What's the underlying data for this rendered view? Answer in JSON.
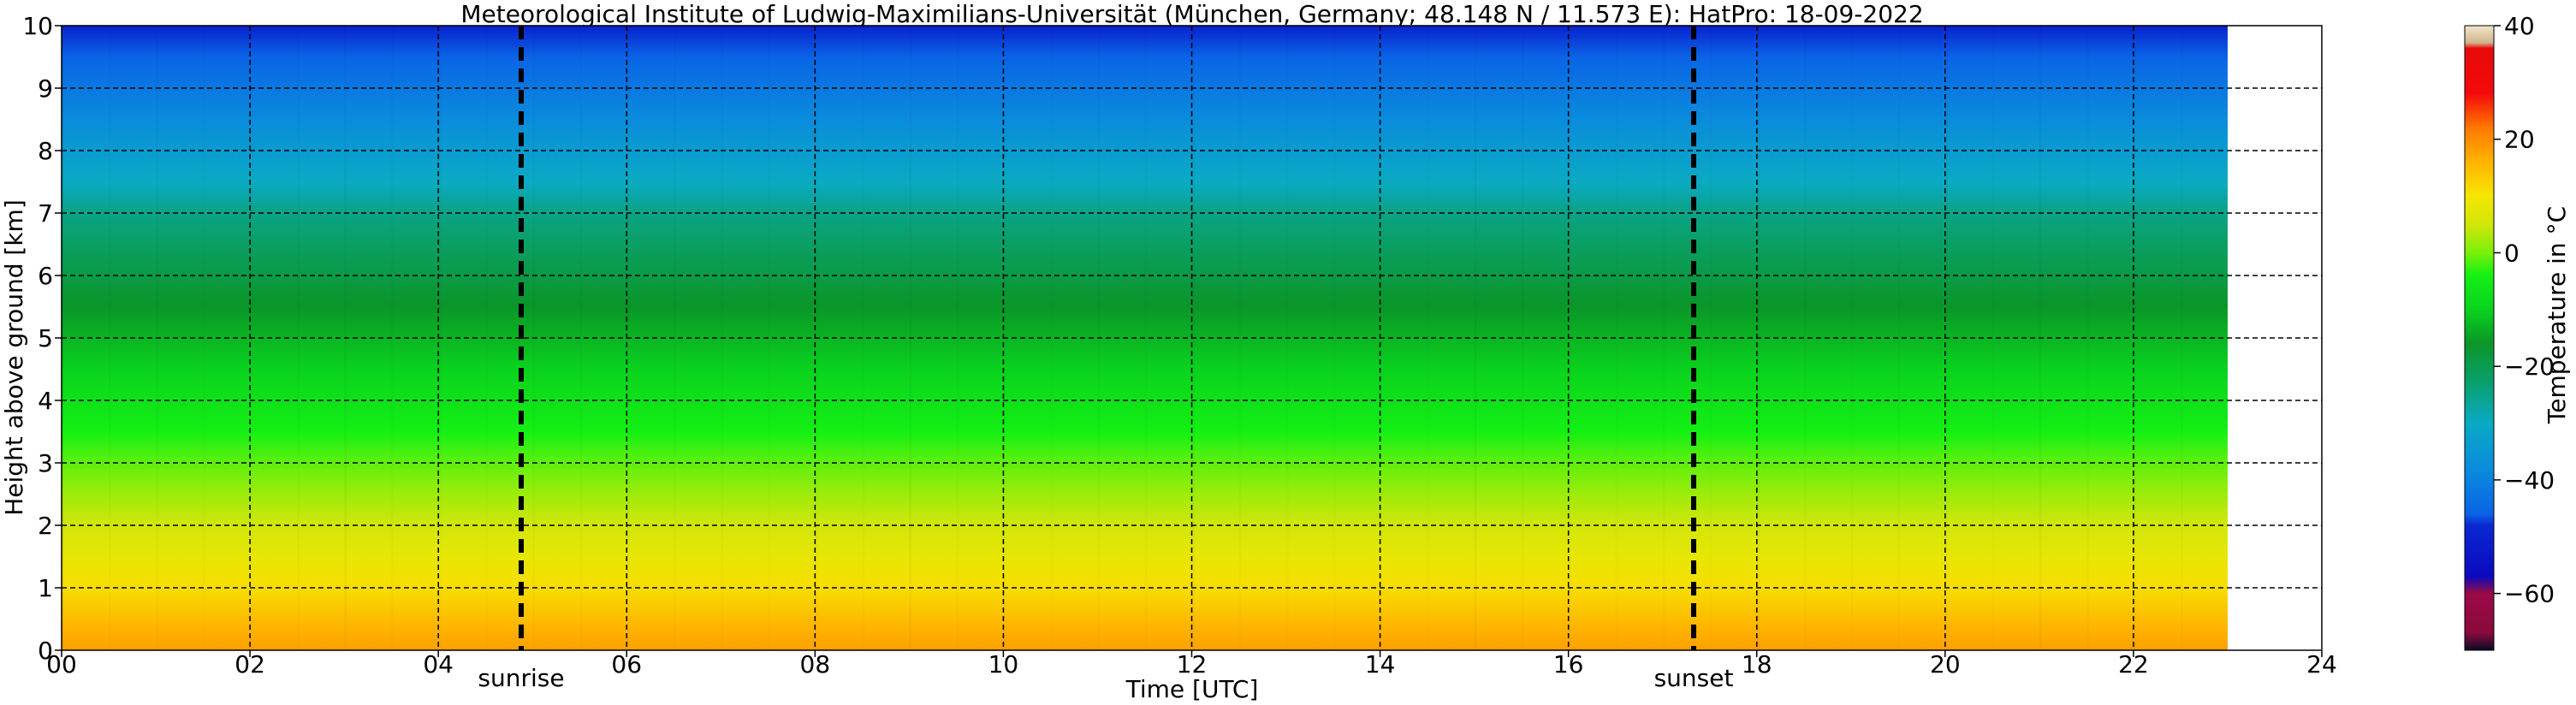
{
  "chart_data": {
    "type": "heatmap",
    "title": "Meteorological Institute of Ludwig-Maximilians-Universität (München, Germany; 48.148 N / 11.573 E):    HatPro: 18-09-2022",
    "xlabel": "Time [UTC]",
    "ylabel": "Height above ground [km]",
    "xlim": [
      0,
      24
    ],
    "ylim": [
      0,
      10
    ],
    "data_x_extent": [
      0,
      23
    ],
    "x_ticks": [
      0,
      2,
      4,
      6,
      8,
      10,
      12,
      14,
      16,
      18,
      20,
      22,
      24
    ],
    "x_tick_labels": [
      "00",
      "02",
      "04",
      "06",
      "08",
      "10",
      "12",
      "14",
      "16",
      "18",
      "20",
      "22",
      "24"
    ],
    "y_ticks": [
      0,
      1,
      2,
      3,
      4,
      5,
      6,
      7,
      8,
      9,
      10
    ],
    "y_tick_labels": [
      "0",
      "1",
      "2",
      "3",
      "4",
      "5",
      "6",
      "7",
      "8",
      "9",
      "10"
    ],
    "grid": true,
    "markers": [
      {
        "label": "sunrise",
        "x": 4.88
      },
      {
        "label": "sunset",
        "x": 17.33
      }
    ],
    "colorbar": {
      "label": "Temperature in °C",
      "range": [
        -70,
        40
      ],
      "ticks": [
        40,
        20,
        0,
        -20,
        -40,
        -60
      ],
      "tick_labels": [
        "40",
        "20",
        "0",
        "−20",
        "−40",
        "−60"
      ],
      "stops": [
        {
          "value": -70,
          "color": "#0a0a28"
        },
        {
          "value": -67,
          "color": "#8a0a3c"
        },
        {
          "value": -60,
          "color": "#9b0a46"
        },
        {
          "value": -57,
          "color": "#0a0abe"
        },
        {
          "value": -48,
          "color": "#0a28d2"
        },
        {
          "value": -46,
          "color": "#0a64e6"
        },
        {
          "value": -38,
          "color": "#0a8cdc"
        },
        {
          "value": -30,
          "color": "#0aaac3"
        },
        {
          "value": -23,
          "color": "#0aa06e"
        },
        {
          "value": -16,
          "color": "#0a9628"
        },
        {
          "value": -10,
          "color": "#0ad21e"
        },
        {
          "value": -4,
          "color": "#14f014"
        },
        {
          "value": 0,
          "color": "#78f00a"
        },
        {
          "value": 5,
          "color": "#d2e60a"
        },
        {
          "value": 10,
          "color": "#f5e600"
        },
        {
          "value": 16,
          "color": "#ffb400"
        },
        {
          "value": 22,
          "color": "#ff7800"
        },
        {
          "value": 28,
          "color": "#f50a0a"
        },
        {
          "value": 36,
          "color": "#e60a0a"
        },
        {
          "value": 37,
          "color": "#d2b48c"
        },
        {
          "value": 40,
          "color": "#f0e6c8"
        }
      ]
    },
    "temperature_profile": [
      {
        "height_km": 0.0,
        "temp_c": 18
      },
      {
        "height_km": 0.5,
        "temp_c": 15
      },
      {
        "height_km": 1.0,
        "temp_c": 11
      },
      {
        "height_km": 1.5,
        "temp_c": 8
      },
      {
        "height_km": 2.0,
        "temp_c": 5
      },
      {
        "height_km": 2.5,
        "temp_c": 2
      },
      {
        "height_km": 3.0,
        "temp_c": -1
      },
      {
        "height_km": 3.5,
        "temp_c": -4
      },
      {
        "height_km": 4.0,
        "temp_c": -7
      },
      {
        "height_km": 4.5,
        "temp_c": -10
      },
      {
        "height_km": 5.0,
        "temp_c": -13
      },
      {
        "height_km": 5.5,
        "temp_c": -16
      },
      {
        "height_km": 6.0,
        "temp_c": -19
      },
      {
        "height_km": 6.5,
        "temp_c": -22
      },
      {
        "height_km": 7.0,
        "temp_c": -25
      },
      {
        "height_km": 7.5,
        "temp_c": -30
      },
      {
        "height_km": 8.0,
        "temp_c": -34
      },
      {
        "height_km": 8.5,
        "temp_c": -38
      },
      {
        "height_km": 9.0,
        "temp_c": -42
      },
      {
        "height_km": 9.5,
        "temp_c": -46
      },
      {
        "height_km": 10.0,
        "temp_c": -50
      }
    ]
  }
}
